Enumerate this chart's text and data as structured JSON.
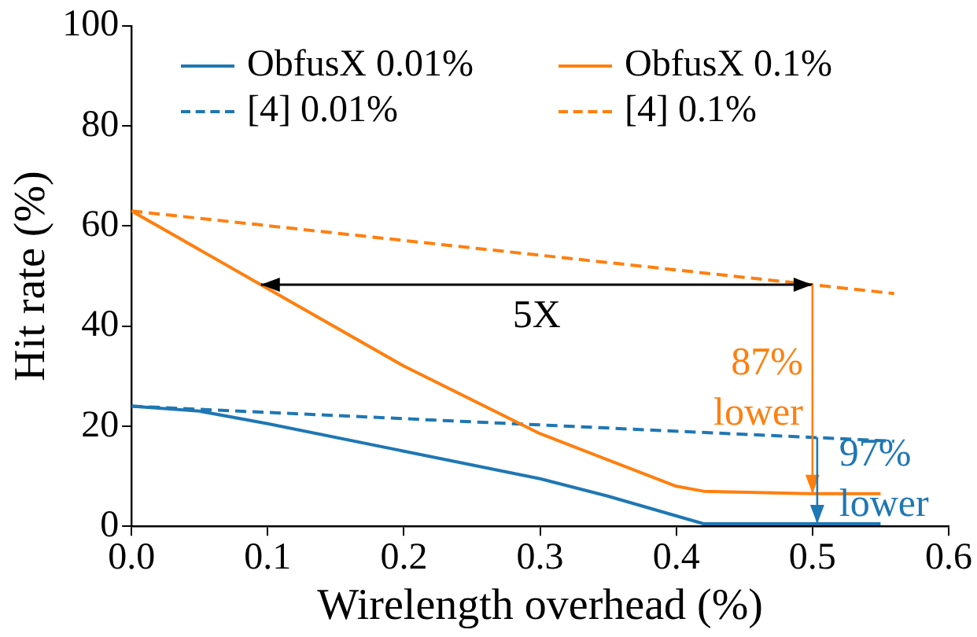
{
  "chart_data": {
    "type": "line",
    "xlabel": "Wirelength overhead (%)",
    "ylabel": "Hit rate (%)",
    "xlim": [
      0,
      0.6
    ],
    "xticks": [
      {
        "value": 0,
        "label": "0.0"
      },
      0.1,
      0.2,
      0.3,
      0.4,
      0.5,
      0.6
    ],
    "ylim": [
      0,
      100
    ],
    "yticks": [
      0,
      20,
      40,
      60,
      80,
      100
    ],
    "grid": false,
    "legend": "top",
    "marker": "none",
    "series": [
      {
        "name": "ObfusX 0.01%",
        "color": "#1f77b4",
        "line_style": "solid",
        "x": [
          0,
          0.05,
          0.1,
          0.2,
          0.3,
          0.35,
          0.42,
          0.55
        ],
        "values": [
          24,
          23,
          20.5,
          15,
          9.5,
          6,
          0.5,
          0.5
        ]
      },
      {
        "name": "ObfusX 0.1%",
        "color": "#ff7f0e",
        "line_style": "solid",
        "x": [
          0,
          0.1,
          0.2,
          0.3,
          0.4,
          0.42,
          0.5,
          0.55
        ],
        "values": [
          63,
          47.5,
          32,
          18.5,
          8,
          7,
          6.5,
          6.5
        ]
      },
      {
        "name": "[4] 0.01%",
        "color": "#1f77b4",
        "line_style": "dashed",
        "x": [
          0,
          0.56
        ],
        "values": [
          24,
          17
        ]
      },
      {
        "name": "[4] 0.1%",
        "color": "#ff7f0e",
        "line_style": "dashed",
        "x": [
          0,
          0.56
        ],
        "values": [
          63,
          46.5
        ]
      }
    ],
    "annotations": [
      "5X",
      {
        "text": "87% lower",
        "x": 0.5,
        "y": 6.5
      },
      {
        "text": "97% lower",
        "x": 0.5,
        "y": 0.5
      }
    ]
  }
}
